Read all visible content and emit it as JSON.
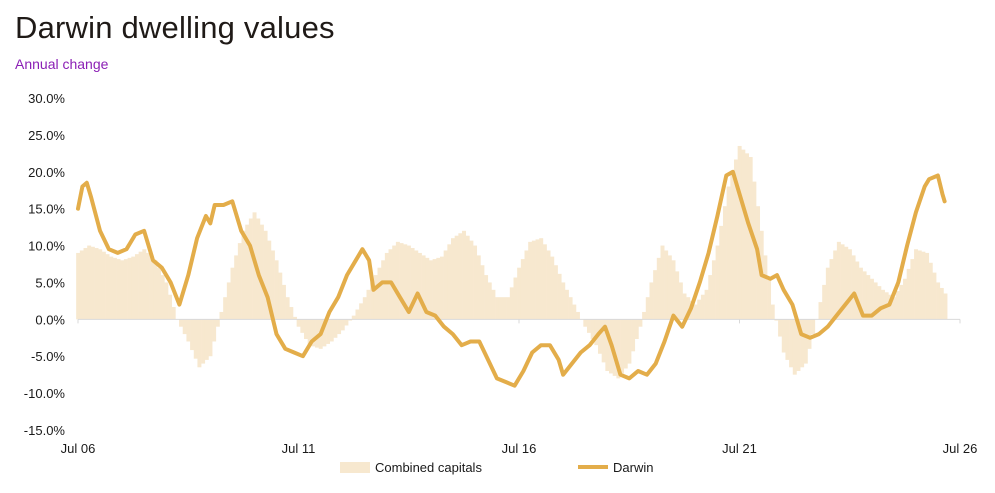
{
  "header": {
    "title": "Darwin dwelling values",
    "subtitle": "Annual change"
  },
  "colors": {
    "combined_capitals": "#f7e8cf",
    "darwin": "#e3ad4a",
    "axis": "#d9d9d9",
    "subtitle": "#8b1fb5"
  },
  "chart_data": {
    "type": "line",
    "title": "Darwin dwelling values",
    "subtitle": "Annual change",
    "xlabel": "",
    "ylabel": "",
    "x_range": [
      "Jul 06",
      "Jul 26"
    ],
    "x_ticks": [
      "Jul 06",
      "Jul 11",
      "Jul 16",
      "Jul 21",
      "Jul 26"
    ],
    "y_ticks": [
      "30.0%",
      "25.0%",
      "20.0%",
      "15.0%",
      "10.0%",
      "5.0%",
      "0.0%",
      "-5.0%",
      "-10.0%",
      "-15.0%"
    ],
    "ylim": [
      -15,
      30
    ],
    "grid": false,
    "legend": "bottom",
    "series": [
      {
        "name": "Combined capitals",
        "style": "bar",
        "points": [
          [
            2006.5,
            9.0
          ],
          [
            2006.75,
            10.0
          ],
          [
            2007.0,
            9.5
          ],
          [
            2007.25,
            8.5
          ],
          [
            2007.5,
            8.0
          ],
          [
            2007.75,
            8.5
          ],
          [
            2008.0,
            9.5
          ],
          [
            2008.25,
            8.0
          ],
          [
            2008.5,
            5.0
          ],
          [
            2008.75,
            0.0
          ],
          [
            2009.0,
            -3.0
          ],
          [
            2009.25,
            -6.5
          ],
          [
            2009.5,
            -5.0
          ],
          [
            2009.75,
            1.0
          ],
          [
            2010.0,
            7.0
          ],
          [
            2010.25,
            12.0
          ],
          [
            2010.5,
            14.5
          ],
          [
            2010.75,
            12.0
          ],
          [
            2011.0,
            8.0
          ],
          [
            2011.25,
            3.0
          ],
          [
            2011.5,
            -1.0
          ],
          [
            2011.75,
            -3.5
          ],
          [
            2012.0,
            -4.0
          ],
          [
            2012.25,
            -3.0
          ],
          [
            2012.5,
            -1.5
          ],
          [
            2012.75,
            0.5
          ],
          [
            2013.0,
            3.0
          ],
          [
            2013.25,
            6.0
          ],
          [
            2013.5,
            9.0
          ],
          [
            2013.75,
            10.5
          ],
          [
            2014.0,
            10.0
          ],
          [
            2014.25,
            9.0
          ],
          [
            2014.5,
            8.0
          ],
          [
            2014.75,
            8.5
          ],
          [
            2015.0,
            11.0
          ],
          [
            2015.25,
            12.0
          ],
          [
            2015.5,
            10.0
          ],
          [
            2015.75,
            6.0
          ],
          [
            2016.0,
            3.0
          ],
          [
            2016.25,
            3.0
          ],
          [
            2016.5,
            7.0
          ],
          [
            2016.75,
            10.5
          ],
          [
            2017.0,
            11.0
          ],
          [
            2017.25,
            8.5
          ],
          [
            2017.5,
            5.0
          ],
          [
            2017.75,
            2.0
          ],
          [
            2018.0,
            -1.0
          ],
          [
            2018.25,
            -3.5
          ],
          [
            2018.5,
            -7.0
          ],
          [
            2018.75,
            -8.0
          ],
          [
            2019.0,
            -6.0
          ],
          [
            2019.25,
            -1.0
          ],
          [
            2019.5,
            5.0
          ],
          [
            2019.75,
            10.0
          ],
          [
            2020.0,
            8.0
          ],
          [
            2020.25,
            3.5
          ],
          [
            2020.5,
            2.0
          ],
          [
            2020.75,
            4.0
          ],
          [
            2021.0,
            10.0
          ],
          [
            2021.25,
            18.0
          ],
          [
            2021.5,
            23.5
          ],
          [
            2021.75,
            22.0
          ],
          [
            2022.0,
            12.0
          ],
          [
            2022.25,
            2.0
          ],
          [
            2022.5,
            -4.5
          ],
          [
            2022.75,
            -7.5
          ],
          [
            2023.0,
            -6.0
          ],
          [
            2023.25,
            0.0
          ],
          [
            2023.5,
            7.0
          ],
          [
            2023.75,
            10.5
          ],
          [
            2024.0,
            9.5
          ],
          [
            2024.25,
            7.0
          ],
          [
            2024.5,
            5.5
          ],
          [
            2024.75,
            4.0
          ],
          [
            2025.0,
            3.0
          ],
          [
            2025.25,
            5.5
          ],
          [
            2025.5,
            9.5
          ],
          [
            2025.75,
            9.0
          ],
          [
            2026.0,
            5.0
          ],
          [
            2026.167,
            3.5
          ]
        ]
      },
      {
        "name": "Darwin",
        "style": "line",
        "points": [
          [
            2006.5,
            15.0
          ],
          [
            2006.6,
            18.0
          ],
          [
            2006.7,
            18.5
          ],
          [
            2006.8,
            16.5
          ],
          [
            2007.0,
            12.0
          ],
          [
            2007.2,
            9.5
          ],
          [
            2007.4,
            9.0
          ],
          [
            2007.6,
            9.5
          ],
          [
            2007.8,
            11.5
          ],
          [
            2008.0,
            12.0
          ],
          [
            2008.2,
            8.0
          ],
          [
            2008.4,
            7.0
          ],
          [
            2008.6,
            5.0
          ],
          [
            2008.8,
            2.0
          ],
          [
            2009.0,
            6.0
          ],
          [
            2009.2,
            11.0
          ],
          [
            2009.4,
            14.0
          ],
          [
            2009.5,
            13.0
          ],
          [
            2009.6,
            15.5
          ],
          [
            2009.8,
            15.5
          ],
          [
            2010.0,
            16.0
          ],
          [
            2010.2,
            12.0
          ],
          [
            2010.4,
            10.0
          ],
          [
            2010.6,
            6.0
          ],
          [
            2010.8,
            3.0
          ],
          [
            2011.0,
            -2.0
          ],
          [
            2011.2,
            -4.0
          ],
          [
            2011.4,
            -4.5
          ],
          [
            2011.6,
            -5.0
          ],
          [
            2011.8,
            -3.0
          ],
          [
            2012.0,
            -2.0
          ],
          [
            2012.2,
            1.0
          ],
          [
            2012.4,
            3.0
          ],
          [
            2012.6,
            6.0
          ],
          [
            2012.8,
            8.0
          ],
          [
            2012.95,
            9.5
          ],
          [
            2013.1,
            8.0
          ],
          [
            2013.2,
            4.0
          ],
          [
            2013.4,
            5.0
          ],
          [
            2013.6,
            5.0
          ],
          [
            2013.8,
            3.0
          ],
          [
            2014.0,
            1.0
          ],
          [
            2014.2,
            3.5
          ],
          [
            2014.4,
            1.0
          ],
          [
            2014.6,
            0.5
          ],
          [
            2014.8,
            -1.0
          ],
          [
            2015.0,
            -2.0
          ],
          [
            2015.2,
            -3.5
          ],
          [
            2015.4,
            -3.0
          ],
          [
            2015.6,
            -3.0
          ],
          [
            2015.8,
            -5.5
          ],
          [
            2016.0,
            -8.0
          ],
          [
            2016.2,
            -8.5
          ],
          [
            2016.4,
            -9.0
          ],
          [
            2016.6,
            -7.0
          ],
          [
            2016.8,
            -4.5
          ],
          [
            2017.0,
            -3.5
          ],
          [
            2017.2,
            -3.5
          ],
          [
            2017.4,
            -5.5
          ],
          [
            2017.5,
            -7.5
          ],
          [
            2017.7,
            -6.0
          ],
          [
            2017.9,
            -4.5
          ],
          [
            2018.1,
            -3.5
          ],
          [
            2018.3,
            -2.0
          ],
          [
            2018.45,
            -1.0
          ],
          [
            2018.6,
            -3.5
          ],
          [
            2018.8,
            -7.5
          ],
          [
            2019.0,
            -8.0
          ],
          [
            2019.2,
            -7.0
          ],
          [
            2019.4,
            -7.5
          ],
          [
            2019.6,
            -6.0
          ],
          [
            2019.8,
            -3.0
          ],
          [
            2020.0,
            0.5
          ],
          [
            2020.2,
            -1.0
          ],
          [
            2020.4,
            1.5
          ],
          [
            2020.6,
            5.0
          ],
          [
            2020.8,
            9.0
          ],
          [
            2021.0,
            14.0
          ],
          [
            2021.2,
            19.5
          ],
          [
            2021.35,
            20.0
          ],
          [
            2021.5,
            17.0
          ],
          [
            2021.7,
            13.0
          ],
          [
            2021.9,
            9.5
          ],
          [
            2022.0,
            6.0
          ],
          [
            2022.2,
            5.5
          ],
          [
            2022.35,
            6.0
          ],
          [
            2022.5,
            4.0
          ],
          [
            2022.7,
            2.0
          ],
          [
            2022.9,
            -2.0
          ],
          [
            2023.1,
            -2.5
          ],
          [
            2023.3,
            -2.0
          ],
          [
            2023.5,
            -1.0
          ],
          [
            2023.7,
            0.5
          ],
          [
            2023.9,
            2.0
          ],
          [
            2024.1,
            3.5
          ],
          [
            2024.3,
            0.5
          ],
          [
            2024.5,
            0.5
          ],
          [
            2024.7,
            1.5
          ],
          [
            2024.9,
            2.0
          ],
          [
            2025.1,
            5.0
          ],
          [
            2025.3,
            10.0
          ],
          [
            2025.5,
            14.5
          ],
          [
            2025.7,
            18.0
          ],
          [
            2025.8,
            19.0
          ],
          [
            2026.0,
            19.5
          ],
          [
            2026.1,
            17.0
          ],
          [
            2026.15,
            16.0
          ]
        ]
      }
    ]
  }
}
